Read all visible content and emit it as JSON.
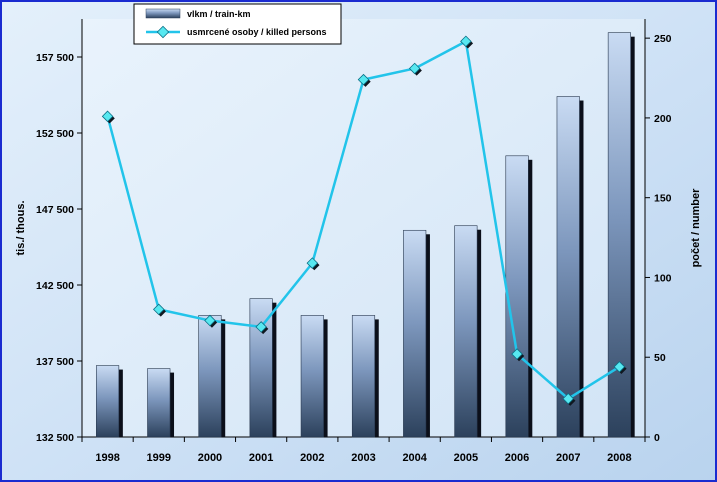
{
  "chart_data": {
    "type": "bar",
    "categories": [
      "1998",
      "1999",
      "2000",
      "2001",
      "2002",
      "2003",
      "2004",
      "2005",
      "2006",
      "2007",
      "2008"
    ],
    "series": [
      {
        "name": "vlkm / train-km",
        "type": "bar",
        "axis": "left",
        "values": [
          137200,
          137000,
          140500,
          141600,
          140500,
          140500,
          146100,
          146400,
          151000,
          154900,
          159100
        ]
      },
      {
        "name": "usmrcené osoby / killed persons",
        "type": "line",
        "axis": "right",
        "values": [
          201,
          80,
          73,
          69,
          109,
          224,
          231,
          248,
          52,
          24,
          44
        ]
      }
    ],
    "ylabel": "tis./ thous.",
    "y2label": "počet / number",
    "ylim": [
      132500,
      160000
    ],
    "yticks": [
      132500,
      137500,
      142500,
      147500,
      152500,
      157500
    ],
    "ytick_labels": [
      "132 500",
      "137 500",
      "142 500",
      "147 500",
      "152 500",
      "157 500"
    ],
    "y2lim": [
      0,
      262
    ],
    "y2ticks": [
      0,
      50,
      100,
      150,
      200,
      250
    ],
    "y2tick_labels": [
      "0",
      "50",
      "100",
      "150",
      "200",
      "250"
    ],
    "legend": "top-left",
    "grid": false,
    "colors": {
      "bar_light": "#c7d8f2",
      "bar_dark": "#2f4561",
      "line": "#22c4ea",
      "marker": "#57e8f0",
      "frame": "#1a2bd0",
      "plot_bg": "#dbeaf8"
    }
  }
}
